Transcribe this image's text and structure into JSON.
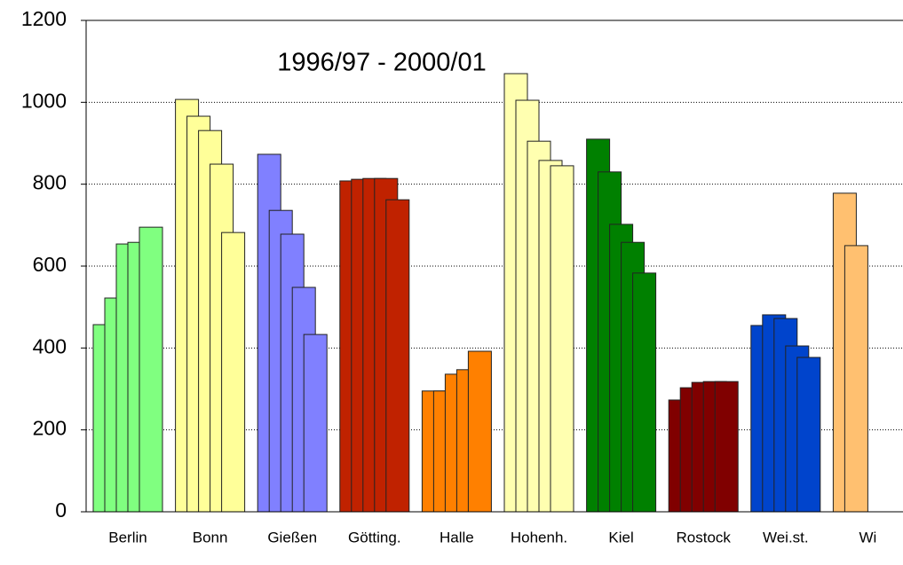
{
  "chart_data": {
    "type": "bar",
    "layout": "overlapped",
    "title": "1996/97 - 2000/01",
    "categories": [
      "Berlin",
      "Bonn",
      "Gießen",
      "Götting.",
      "Halle",
      "Hohenh.",
      "Kiel",
      "Rostock",
      "Wei.st.",
      "Wi"
    ],
    "colors": [
      "#80ff80",
      "#ffff99",
      "#8080ff",
      "#c02200",
      "#ff8000",
      "#ffffb0",
      "#008000",
      "#800000",
      "#0044cc",
      "#ffc070"
    ],
    "series": [
      {
        "values": [
          457,
          1007,
          873,
          808,
          295,
          1070,
          910,
          273,
          455,
          778
        ]
      },
      {
        "values": [
          522,
          966,
          736,
          812,
          295,
          1005,
          830,
          303,
          481,
          650
        ]
      },
      {
        "values": [
          654,
          931,
          678,
          814,
          336,
          905,
          702,
          316,
          472,
          null
        ]
      },
      {
        "values": [
          658,
          849,
          548,
          814,
          347,
          858,
          658,
          318,
          405,
          null
        ]
      },
      {
        "values": [
          695,
          682,
          433,
          762,
          392,
          845,
          583,
          318,
          377,
          null
        ]
      }
    ],
    "ylim": [
      0,
      1200
    ],
    "yticks": [
      0,
      200,
      400,
      600,
      800,
      1000,
      1200
    ],
    "grid": true
  }
}
